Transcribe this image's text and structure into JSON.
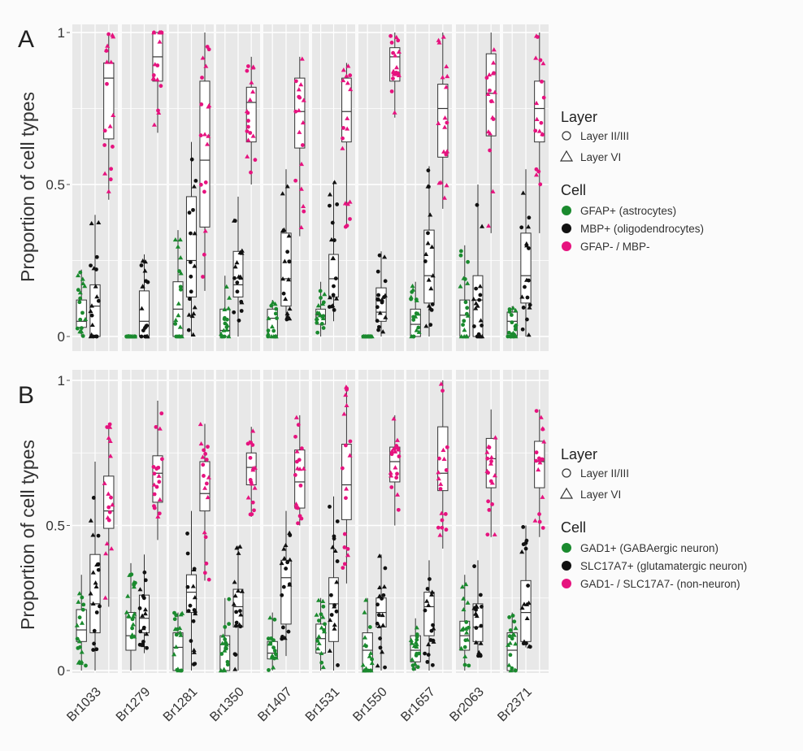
{
  "chart_data": [
    {
      "panel": "A",
      "type": "box",
      "xlabel": "",
      "ylabel": "Proportion of cell types",
      "ylim": [
        0,
        1
      ],
      "yticks": [
        "0",
        "0.5",
        "1"
      ],
      "grid": true,
      "legend_position": "right",
      "facets": [
        "Br1033",
        "Br1279",
        "Br1281",
        "Br1350",
        "Br1407",
        "Br1531",
        "Br1550",
        "Br1657",
        "Br2063",
        "Br2371"
      ],
      "legend": {
        "layer_title": "Layer",
        "layers": [
          {
            "label": "Layer II/III",
            "shape": "circle"
          },
          {
            "label": "Layer VI",
            "shape": "triangle"
          }
        ],
        "cell_title": "Cell",
        "cells": [
          {
            "label": "GFAP+ (astrocytes)",
            "color": "#1a8a2e"
          },
          {
            "label": "MBP+ (oligodendrocytes)",
            "color": "#111111"
          },
          {
            "label": "GFAP- / MBP-",
            "color": "#e6137f"
          }
        ]
      },
      "series": [
        {
          "name": "GFAP+ (astrocytes)",
          "boxes": [
            {
              "min": 0,
              "q1": 0.03,
              "median": 0.05,
              "q3": 0.12,
              "max": 0.22
            },
            {
              "min": 0,
              "q1": 0,
              "median": 0,
              "q3": 0,
              "max": 0
            },
            {
              "min": 0,
              "q1": 0,
              "median": 0.09,
              "q3": 0.18,
              "max": 0.35
            },
            {
              "min": 0,
              "q1": 0,
              "median": 0.02,
              "q3": 0.09,
              "max": 0.2
            },
            {
              "min": 0,
              "q1": 0,
              "median": 0.06,
              "q3": 0.09,
              "max": 0.12
            },
            {
              "min": 0,
              "q1": 0.04,
              "median": 0.07,
              "q3": 0.09,
              "max": 0.18
            },
            {
              "min": 0,
              "q1": 0,
              "median": 0,
              "q3": 0,
              "max": 0
            },
            {
              "min": 0,
              "q1": 0,
              "median": 0.04,
              "q3": 0.09,
              "max": 0.18
            },
            {
              "min": 0,
              "q1": 0,
              "median": 0.07,
              "q3": 0.12,
              "max": 0.3
            },
            {
              "min": 0,
              "q1": 0,
              "median": 0.05,
              "q3": 0.08,
              "max": 0.1
            }
          ]
        },
        {
          "name": "MBP+ (oligodendrocytes)",
          "boxes": [
            {
              "min": 0,
              "q1": 0,
              "median": 0.1,
              "q3": 0.17,
              "max": 0.4
            },
            {
              "min": 0,
              "q1": 0,
              "median": 0.05,
              "q3": 0.15,
              "max": 0.27
            },
            {
              "min": 0,
              "q1": 0.13,
              "median": 0.25,
              "q3": 0.46,
              "max": 0.64
            },
            {
              "min": 0,
              "q1": 0.13,
              "median": 0.17,
              "q3": 0.28,
              "max": 0.46
            },
            {
              "min": 0.05,
              "q1": 0.1,
              "median": 0.19,
              "q3": 0.34,
              "max": 0.55
            },
            {
              "min": 0.05,
              "q1": 0.13,
              "median": 0.19,
              "q3": 0.27,
              "max": 0.51
            },
            {
              "min": 0,
              "q1": 0.05,
              "median": 0.08,
              "q3": 0.16,
              "max": 0.28
            },
            {
              "min": 0,
              "q1": 0.11,
              "median": 0.2,
              "q3": 0.35,
              "max": 0.56
            },
            {
              "min": 0,
              "q1": 0,
              "median": 0.12,
              "q3": 0.2,
              "max": 0.5
            },
            {
              "min": 0,
              "q1": 0.11,
              "median": 0.2,
              "q3": 0.34,
              "max": 0.55
            }
          ]
        },
        {
          "name": "GFAP- / MBP-",
          "boxes": [
            {
              "min": 0.45,
              "q1": 0.65,
              "median": 0.85,
              "q3": 0.9,
              "max": 1.0
            },
            {
              "min": 0.67,
              "q1": 0.84,
              "median": 0.92,
              "q3": 1.0,
              "max": 1.0
            },
            {
              "min": 0.15,
              "q1": 0.36,
              "median": 0.58,
              "q3": 0.84,
              "max": 1.0
            },
            {
              "min": 0.5,
              "q1": 0.64,
              "median": 0.77,
              "q3": 0.82,
              "max": 0.92
            },
            {
              "min": 0.33,
              "q1": 0.62,
              "median": 0.74,
              "q3": 0.85,
              "max": 0.92
            },
            {
              "min": 0.36,
              "q1": 0.64,
              "median": 0.74,
              "q3": 0.85,
              "max": 0.9
            },
            {
              "min": 0.72,
              "q1": 0.84,
              "median": 0.92,
              "q3": 0.95,
              "max": 1.0
            },
            {
              "min": 0.42,
              "q1": 0.59,
              "median": 0.75,
              "q3": 0.83,
              "max": 1.0
            },
            {
              "min": 0.34,
              "q1": 0.66,
              "median": 0.8,
              "q3": 0.93,
              "max": 1.0
            },
            {
              "min": 0.34,
              "q1": 0.64,
              "median": 0.75,
              "q3": 0.84,
              "max": 1.0
            }
          ]
        }
      ]
    },
    {
      "panel": "B",
      "type": "box",
      "xlabel": "",
      "ylabel": "Proportion of cell types",
      "ylim": [
        0,
        1
      ],
      "yticks": [
        "0",
        "0.5",
        "1"
      ],
      "grid": true,
      "legend_position": "right",
      "facets": [
        "Br1033",
        "Br1279",
        "Br1281",
        "Br1350",
        "Br1407",
        "Br1531",
        "Br1550",
        "Br1657",
        "Br2063",
        "Br2371"
      ],
      "legend": {
        "layer_title": "Layer",
        "layers": [
          {
            "label": "Layer II/III",
            "shape": "circle"
          },
          {
            "label": "Layer VI",
            "shape": "triangle"
          }
        ],
        "cell_title": "Cell",
        "cells": [
          {
            "label": "GAD1+ (GABAergic neuron)",
            "color": "#1a8a2e"
          },
          {
            "label": "SLC17A7+ (glutamatergic neuron)",
            "color": "#111111"
          },
          {
            "label": "GAD1- / SLC17A7- (non-neuron)",
            "color": "#e6137f"
          }
        ]
      },
      "series": [
        {
          "name": "GAD1+ (GABAergic neuron)",
          "boxes": [
            {
              "min": 0,
              "q1": 0.1,
              "median": 0.14,
              "q3": 0.21,
              "max": 0.33
            },
            {
              "min": 0,
              "q1": 0.07,
              "median": 0.12,
              "q3": 0.2,
              "max": 0.37
            },
            {
              "min": 0,
              "q1": 0,
              "median": 0.08,
              "q3": 0.13,
              "max": 0.2
            },
            {
              "min": 0,
              "q1": 0,
              "median": 0.09,
              "q3": 0.12,
              "max": 0.25
            },
            {
              "min": 0,
              "q1": 0.04,
              "median": 0.06,
              "q3": 0.1,
              "max": 0.2
            },
            {
              "min": 0,
              "q1": 0.06,
              "median": 0.11,
              "q3": 0.16,
              "max": 0.25
            },
            {
              "min": 0,
              "q1": 0,
              "median": 0.07,
              "q3": 0.13,
              "max": 0.25
            },
            {
              "min": 0,
              "q1": 0.03,
              "median": 0.07,
              "q3": 0.12,
              "max": 0.18
            },
            {
              "min": 0,
              "q1": 0.07,
              "median": 0.12,
              "q3": 0.17,
              "max": 0.33
            },
            {
              "min": 0,
              "q1": 0,
              "median": 0.07,
              "q3": 0.13,
              "max": 0.2
            }
          ]
        },
        {
          "name": "SLC17A7+ (glutamatergic neuron)",
          "boxes": [
            {
              "min": 0,
              "q1": 0.13,
              "median": 0.23,
              "q3": 0.4,
              "max": 0.72
            },
            {
              "min": 0.06,
              "q1": 0.13,
              "median": 0.18,
              "q3": 0.26,
              "max": 0.4
            },
            {
              "min": 0,
              "q1": 0.2,
              "median": 0.27,
              "q3": 0.33,
              "max": 0.55
            },
            {
              "min": 0,
              "q1": 0.15,
              "median": 0.22,
              "q3": 0.28,
              "max": 0.43
            },
            {
              "min": 0.05,
              "q1": 0.16,
              "median": 0.32,
              "q3": 0.38,
              "max": 0.55
            },
            {
              "min": 0,
              "q1": 0.1,
              "median": 0.23,
              "q3": 0.32,
              "max": 0.6
            },
            {
              "min": 0,
              "q1": 0.15,
              "median": 0.2,
              "q3": 0.25,
              "max": 0.4
            },
            {
              "min": 0,
              "q1": 0.12,
              "median": 0.22,
              "q3": 0.27,
              "max": 0.38
            },
            {
              "min": 0.05,
              "q1": 0.1,
              "median": 0.15,
              "q3": 0.23,
              "max": 0.38
            },
            {
              "min": 0.08,
              "q1": 0.1,
              "median": 0.2,
              "q3": 0.31,
              "max": 0.5
            }
          ]
        },
        {
          "name": "GAD1- / SLC17A7- (non-neuron)",
          "boxes": [
            {
              "min": 0.22,
              "q1": 0.49,
              "median": 0.55,
              "q3": 0.67,
              "max": 0.85
            },
            {
              "min": 0.45,
              "q1": 0.58,
              "median": 0.68,
              "q3": 0.74,
              "max": 0.93
            },
            {
              "min": 0.31,
              "q1": 0.55,
              "median": 0.61,
              "q3": 0.72,
              "max": 0.85
            },
            {
              "min": 0.53,
              "q1": 0.64,
              "median": 0.7,
              "q3": 0.75,
              "max": 0.84
            },
            {
              "min": 0.5,
              "q1": 0.56,
              "median": 0.65,
              "q3": 0.76,
              "max": 0.88
            },
            {
              "min": 0.3,
              "q1": 0.52,
              "median": 0.64,
              "q3": 0.78,
              "max": 0.98
            },
            {
              "min": 0.5,
              "q1": 0.65,
              "median": 0.72,
              "q3": 0.77,
              "max": 0.88
            },
            {
              "min": 0.42,
              "q1": 0.62,
              "median": 0.68,
              "q3": 0.84,
              "max": 1.0
            },
            {
              "min": 0.46,
              "q1": 0.63,
              "median": 0.73,
              "q3": 0.8,
              "max": 0.9
            },
            {
              "min": 0.46,
              "q1": 0.63,
              "median": 0.72,
              "q3": 0.79,
              "max": 0.9
            }
          ]
        }
      ]
    }
  ]
}
